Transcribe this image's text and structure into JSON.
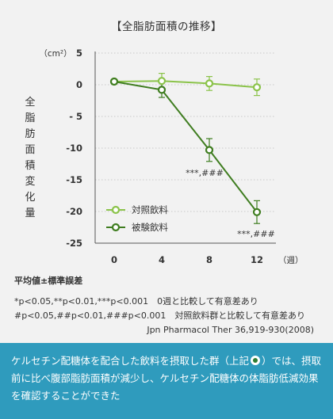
{
  "chart_data": {
    "type": "line",
    "title": "【全脂肪面積の推移】",
    "ylabel": "全脂肪面積変化量",
    "yunit": "（cm²）",
    "xunit": "（週）",
    "x": [
      0,
      4,
      8,
      12
    ],
    "ylim": [
      -25,
      5
    ],
    "yticks": [
      5,
      0,
      -5,
      -10,
      -15,
      -20,
      -25
    ],
    "ytick_labels": [
      "5",
      "0",
      "- 5",
      "-10",
      "-15",
      "-20",
      "-25"
    ],
    "grid": true,
    "legend_position": "bottom-left",
    "series": [
      {
        "name": "対照飲料",
        "values": [
          0.5,
          0.6,
          0.2,
          -0.4
        ],
        "errors": [
          0.2,
          1.2,
          1.1,
          1.3
        ],
        "color": "#8bc34a"
      },
      {
        "name": "被験飲料",
        "values": [
          0.5,
          -0.8,
          -10.3,
          -20.1
        ],
        "errors": [
          0.2,
          1.2,
          1.8,
          1.8
        ],
        "color": "#3f7d20"
      }
    ],
    "annotations": [
      "***,###",
      "***,###"
    ]
  },
  "notes": {
    "stat": "平均値±標準誤差",
    "sig1": "*p<0.05,**p<0.01,***p<0.001　0週と比較して有意差あり",
    "sig2": "#p<0.05,##p<0.01,###p<0.001　対照飲料群と比較して有意差あり",
    "source": "Jpn Pharmacol Ther 36,919-930(2008)"
  },
  "banner": {
    "part1": "ケルセチン配糖体を配合した飲料を摂取した群（上記",
    "part2": "）では、摂取前に比べ腹部脂肪面積が減少し、ケルセチン配糖体の体脂肪低減効果を確認することができた"
  },
  "colors": {
    "banner": "#2f9bbd",
    "control": "#8bc34a",
    "test": "#3f7d20"
  }
}
